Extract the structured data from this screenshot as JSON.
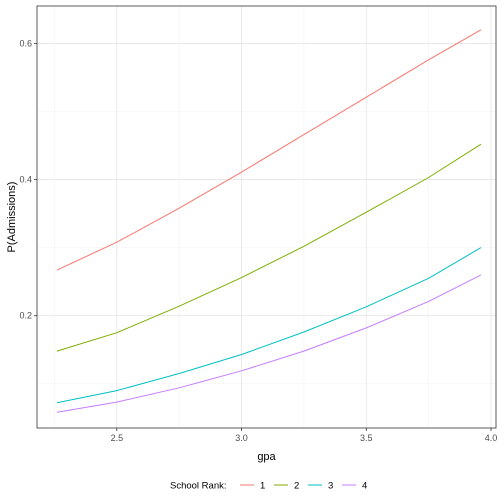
{
  "chart_data": {
    "type": "line",
    "xlabel": "gpa",
    "ylabel": "P(Admissions)",
    "xlim": [
      2.18,
      4.02
    ],
    "ylim": [
      0.035,
      0.655
    ],
    "x_ticks": [
      2.5,
      3.0,
      3.5,
      4.0
    ],
    "x_tick_labels": [
      "2.5",
      "3.0",
      "3.5",
      "4.0"
    ],
    "y_ticks": [
      0.2,
      0.4,
      0.6
    ],
    "y_tick_labels": [
      "0.2",
      "0.4",
      "0.6"
    ],
    "grid": true,
    "legend_title": "School Rank:",
    "legend_position": "bottom",
    "series": [
      {
        "name": "1",
        "color": "#F8766D",
        "x": [
          2.26,
          2.5,
          2.75,
          3.0,
          3.25,
          3.5,
          3.75,
          3.96
        ],
        "y": [
          0.267,
          0.308,
          0.358,
          0.411,
          0.466,
          0.521,
          0.576,
          0.62
        ]
      },
      {
        "name": "2",
        "color": "#7CAE00",
        "x": [
          2.26,
          2.5,
          2.75,
          3.0,
          3.25,
          3.5,
          3.75,
          3.96
        ],
        "y": [
          0.148,
          0.175,
          0.214,
          0.256,
          0.302,
          0.352,
          0.403,
          0.452
        ]
      },
      {
        "name": "3",
        "color": "#00BFC4",
        "x": [
          2.26,
          2.5,
          2.75,
          3.0,
          3.25,
          3.5,
          3.75,
          3.96
        ],
        "y": [
          0.072,
          0.09,
          0.115,
          0.143,
          0.176,
          0.213,
          0.255,
          0.3
        ]
      },
      {
        "name": "4",
        "color": "#C77CFF",
        "x": [
          2.26,
          2.5,
          2.75,
          3.0,
          3.25,
          3.5,
          3.75,
          3.96
        ],
        "y": [
          0.058,
          0.073,
          0.094,
          0.119,
          0.148,
          0.182,
          0.221,
          0.26
        ]
      }
    ]
  }
}
